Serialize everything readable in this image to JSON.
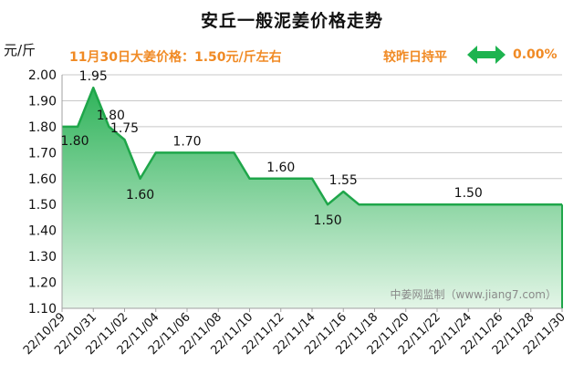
{
  "title": "安丘一般泥姜价格走势",
  "unit": "元/斤",
  "headline": "11月30日大姜价格：1.50元/斤左右",
  "status": "较昨日持平",
  "change": "0.00%",
  "watermark": "中姜网监制（www.jiang7.com）",
  "colors": {
    "headline": "#f08a24",
    "fill_top": "#2fb35a",
    "fill_bottom": "#e3f5e7",
    "line": "#1fa64a",
    "arrow": "#1db34f",
    "axis": "#a0a0a0",
    "grid": "#c8c8c8"
  },
  "icons": {
    "change_indicator": "double-arrow-icon"
  },
  "chart_data": {
    "type": "area",
    "x": [
      "22/10/29",
      "22/10/30",
      "22/10/31",
      "22/11/01",
      "22/11/02",
      "22/11/03",
      "22/11/04",
      "22/11/05",
      "22/11/06",
      "22/11/07",
      "22/11/08",
      "22/11/09",
      "22/11/10",
      "22/11/11",
      "22/11/12",
      "22/11/13",
      "22/11/14",
      "22/11/15",
      "22/11/16",
      "22/11/17",
      "22/11/18",
      "22/11/19",
      "22/11/20",
      "22/11/21",
      "22/11/22",
      "22/11/23",
      "22/11/24",
      "22/11/25",
      "22/11/26",
      "22/11/27",
      "22/11/28",
      "22/11/29",
      "22/11/30"
    ],
    "values": [
      1.8,
      1.8,
      1.95,
      1.8,
      1.75,
      1.6,
      1.7,
      1.7,
      1.7,
      1.7,
      1.7,
      1.7,
      1.6,
      1.6,
      1.6,
      1.6,
      1.6,
      1.5,
      1.55,
      1.5,
      1.5,
      1.5,
      1.5,
      1.5,
      1.5,
      1.5,
      1.5,
      1.5,
      1.5,
      1.5,
      1.5,
      1.5,
      1.5
    ],
    "xticks": [
      "22/10/29",
      "22/10/31",
      "22/11/02",
      "22/11/04",
      "22/11/06",
      "22/11/08",
      "22/11/10",
      "22/11/12",
      "22/11/14",
      "22/11/16",
      "22/11/18",
      "22/11/20",
      "22/11/22",
      "22/11/24",
      "22/11/26",
      "22/11/28",
      "22/11/30"
    ],
    "yticks": [
      "1.10",
      "1.20",
      "1.30",
      "1.40",
      "1.50",
      "1.60",
      "1.70",
      "1.80",
      "1.90",
      "2.00"
    ],
    "ylim": [
      1.1,
      2.0
    ],
    "grid": "horizontal",
    "data_labels": [
      {
        "index": 0,
        "value": "1.80"
      },
      {
        "index": 2,
        "value": "1.95"
      },
      {
        "index": 3,
        "value": "1.80"
      },
      {
        "index": 4,
        "value": "1.75"
      },
      {
        "index": 5,
        "value": "1.60"
      },
      {
        "index": 8,
        "value": "1.70"
      },
      {
        "index": 14,
        "value": "1.60"
      },
      {
        "index": 17,
        "value": "1.50"
      },
      {
        "index": 18,
        "value": "1.55"
      },
      {
        "index": 26,
        "value": "1.50"
      }
    ]
  }
}
